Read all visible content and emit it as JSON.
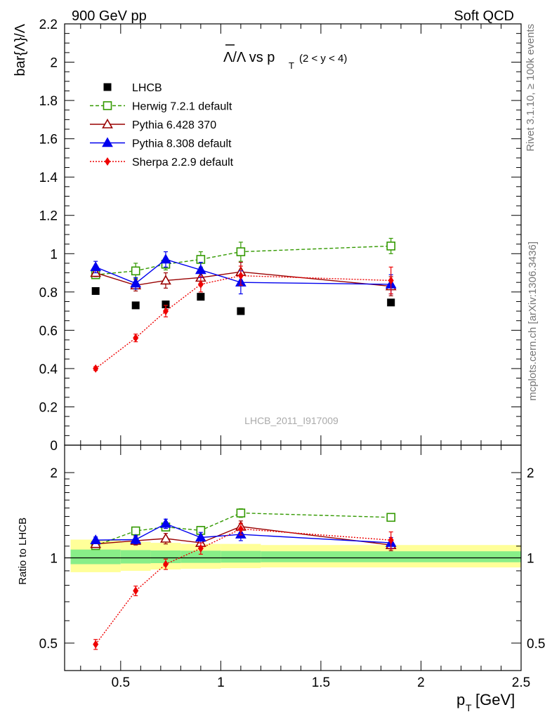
{
  "header": {
    "left": "900 GeV pp",
    "right": "Soft QCD"
  },
  "side_labels": {
    "rivet": "Rivet 3.1.10, ≥ 100k events",
    "mcplots": "mcplots.cern.ch [arXiv:1306.3436]"
  },
  "watermark": "LHCB_2011_I917009",
  "main_title": {
    "text": "Λ/Λ vs p",
    "sub": "T",
    "range": "(2 < y < 4)"
  },
  "y_label_top": "bar{Λ}/Λ",
  "y_label_bottom": "Ratio to LHCB",
  "x_label": {
    "text": "p",
    "sub": "T",
    "unit": "[GeV]"
  },
  "colors": {
    "data": "#000000",
    "herwig": "#339900",
    "pythia6": "#990000",
    "pythia8": "#0000ee",
    "sherpa": "#ee0000",
    "band_outer": "#ffff99",
    "band_inner": "#88ee88"
  },
  "chart_data": [
    {
      "type": "scatter",
      "panel": "main",
      "xlim": [
        0.22,
        2.5
      ],
      "ylim": [
        0,
        2.2
      ],
      "y_ticks": [
        "0",
        "0.2",
        "0.4",
        "0.6",
        "0.8",
        "1",
        "1.2",
        "1.4",
        "1.6",
        "1.8",
        "2",
        "2.2"
      ],
      "x": [
        0.375,
        0.575,
        0.725,
        0.9,
        1.1,
        1.85
      ],
      "series": [
        {
          "name": "LHCB",
          "key": "data",
          "marker": "square-filled",
          "values": [
            0.805,
            0.73,
            0.735,
            0.775,
            0.7,
            0.745
          ],
          "errors": [
            0.01,
            0.01,
            0.01,
            0.01,
            0.01,
            0.01
          ]
        },
        {
          "name": "Herwig 7.2.1 default",
          "key": "herwig",
          "marker": "square-open",
          "line": "dashed",
          "values": [
            0.89,
            0.91,
            0.945,
            0.97,
            1.01,
            1.04
          ],
          "errors": [
            0.02,
            0.04,
            0.03,
            0.04,
            0.05,
            0.04
          ]
        },
        {
          "name": "Pythia 6.428 370",
          "key": "pythia6",
          "marker": "triangle-open",
          "line": "solid",
          "values": [
            0.9,
            0.835,
            0.86,
            0.875,
            0.905,
            0.83
          ],
          "errors": [
            0.02,
            0.03,
            0.04,
            0.04,
            0.05,
            0.05
          ]
        },
        {
          "name": "Pythia 8.308 default",
          "key": "pythia8",
          "marker": "triangle-filled",
          "line": "solid",
          "values": [
            0.93,
            0.845,
            0.97,
            0.915,
            0.85,
            0.84
          ],
          "errors": [
            0.03,
            0.03,
            0.04,
            0.04,
            0.06,
            0.05
          ]
        },
        {
          "name": "Sherpa 2.2.9 default",
          "key": "sherpa",
          "marker": "diamond-filled",
          "line": "dotted",
          "values": [
            0.4,
            0.56,
            0.7,
            0.84,
            0.885,
            0.86
          ],
          "errors": [
            0.01,
            0.02,
            0.03,
            0.04,
            0.05,
            0.07
          ]
        }
      ]
    },
    {
      "type": "scatter",
      "panel": "ratio",
      "xlim": [
        0.22,
        2.5
      ],
      "ylim": [
        0.4,
        2.5
      ],
      "log_y": true,
      "y_ticks": [
        "0.5",
        "1",
        "2"
      ],
      "x_ticks": [
        "0.5",
        "1",
        "1.5",
        "2",
        "2.5"
      ],
      "reference": 1,
      "band_bins": [
        [
          0.25,
          0.5
        ],
        [
          0.5,
          0.65
        ],
        [
          0.65,
          0.8
        ],
        [
          0.8,
          1.0
        ],
        [
          1.0,
          1.2
        ],
        [
          1.2,
          2.5
        ]
      ],
      "band_outer": [
        [
          0.89,
          1.16
        ],
        [
          0.9,
          1.14
        ],
        [
          0.91,
          1.13
        ],
        [
          0.915,
          1.12
        ],
        [
          0.92,
          1.12
        ],
        [
          0.925,
          1.11
        ]
      ],
      "band_inner": [
        [
          0.95,
          1.07
        ],
        [
          0.955,
          1.065
        ],
        [
          0.958,
          1.062
        ],
        [
          0.96,
          1.06
        ],
        [
          0.962,
          1.058
        ],
        [
          0.965,
          1.055
        ]
      ],
      "x": [
        0.375,
        0.575,
        0.725,
        0.9,
        1.1,
        1.85
      ],
      "series": [
        {
          "name": "Herwig 7.2.1 default",
          "key": "herwig",
          "marker": "square-open",
          "line": "dashed",
          "values": [
            1.105,
            1.245,
            1.285,
            1.25,
            1.44,
            1.39
          ],
          "errors": [
            0.02,
            0.04,
            0.04,
            0.04,
            0.05,
            0.04
          ]
        },
        {
          "name": "Pythia 6.428 370",
          "key": "pythia6",
          "marker": "triangle-open",
          "line": "solid",
          "values": [
            1.12,
            1.15,
            1.17,
            1.13,
            1.29,
            1.11
          ],
          "errors": [
            0.03,
            0.04,
            0.05,
            0.05,
            0.06,
            0.05
          ]
        },
        {
          "name": "Pythia 8.308 default",
          "key": "pythia8",
          "marker": "triangle-filled",
          "line": "solid",
          "values": [
            1.155,
            1.16,
            1.32,
            1.18,
            1.21,
            1.13
          ],
          "errors": [
            0.03,
            0.04,
            0.05,
            0.05,
            0.06,
            0.05
          ]
        },
        {
          "name": "Sherpa 2.2.9 default",
          "key": "sherpa",
          "marker": "diamond-filled",
          "line": "dotted",
          "values": [
            0.495,
            0.765,
            0.95,
            1.08,
            1.265,
            1.155
          ],
          "errors": [
            0.02,
            0.03,
            0.04,
            0.05,
            0.06,
            0.08
          ]
        }
      ]
    }
  ]
}
